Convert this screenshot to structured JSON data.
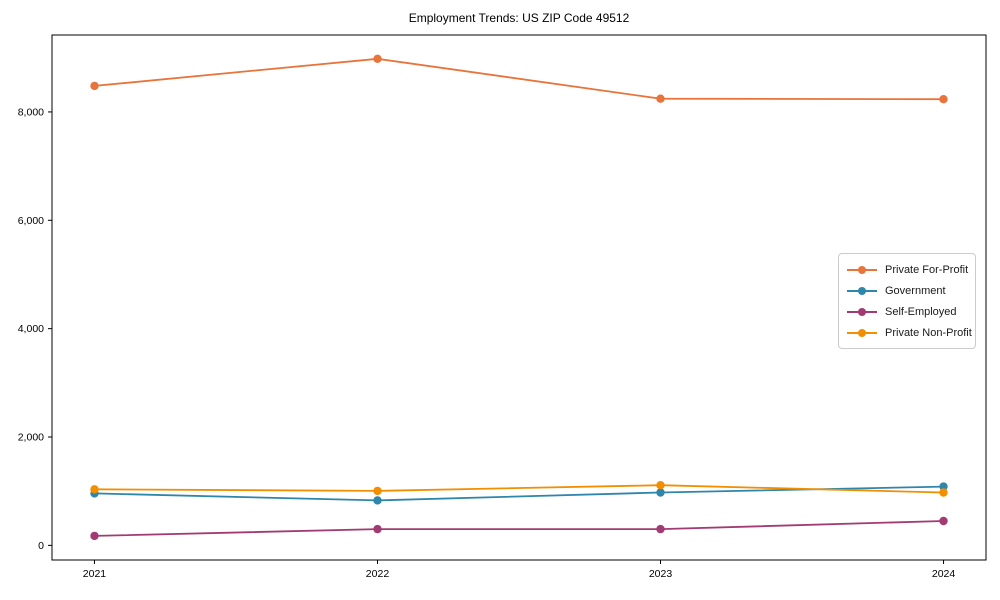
{
  "chart_data": {
    "type": "line",
    "title": "Employment Trends: US ZIP Code 49512",
    "xlabel": "",
    "ylabel": "",
    "x": [
      2021,
      2022,
      2023,
      2024
    ],
    "x_tick_labels": [
      "2021",
      "2022",
      "2023",
      "2024"
    ],
    "y_ticks": [
      0,
      2000,
      4000,
      6000,
      8000
    ],
    "y_tick_labels": [
      "0",
      "2,000",
      "4,000",
      "6,000",
      "8,000"
    ],
    "xlim": [
      2020.85,
      2024.15
    ],
    "ylim": [
      -270,
      9420
    ],
    "grid": false,
    "legend_position": "center-right",
    "axis_color": "#000000",
    "background_color": "#ffffff",
    "series": [
      {
        "name": "Private For-Profit",
        "color": "#E8743B",
        "values": [
          8480,
          8980,
          8245,
          8235
        ]
      },
      {
        "name": "Government",
        "color": "#2E86AB",
        "values": [
          960,
          830,
          975,
          1085
        ]
      },
      {
        "name": "Self-Employed",
        "color": "#A23B72",
        "values": [
          175,
          300,
          300,
          450
        ]
      },
      {
        "name": "Private Non-Profit",
        "color": "#F18F01",
        "values": [
          1035,
          1005,
          1110,
          975
        ]
      }
    ]
  }
}
